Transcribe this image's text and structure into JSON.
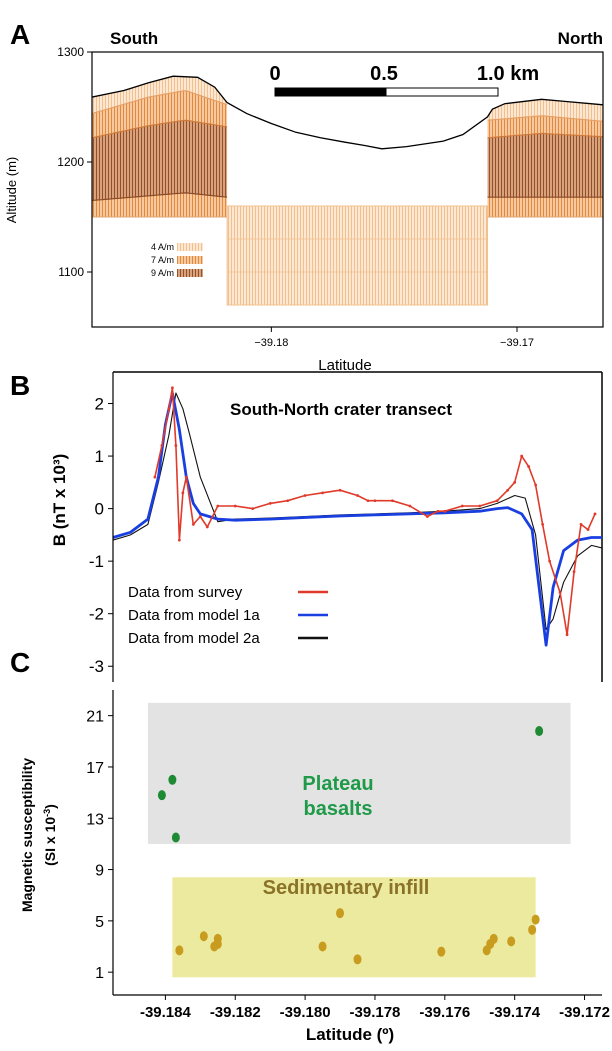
{
  "chart_data": [
    {
      "panel_label": "A",
      "type": "area",
      "xlabel": "Latitude",
      "ylabel": "Altitude (m)",
      "ylim": [
        1050,
        1300
      ],
      "xlim": [
        -39.1873,
        -39.1665
      ],
      "xticks": [
        -39.18,
        -39.17
      ],
      "xtick_labels": [
        "−39.18",
        "−39.17"
      ],
      "yticks": [
        1100,
        1200,
        1300
      ],
      "corner_labels": {
        "left": "South",
        "right": "North"
      },
      "scale_bar": {
        "labels": [
          "0",
          "0.5",
          "1.0 km"
        ]
      },
      "legend": [
        {
          "label": "4 A/m",
          "color": "#f6d2ab"
        },
        {
          "label": "7 A/m",
          "color": "#ec9a58"
        },
        {
          "label": "9 A/m",
          "color": "#a6582f"
        }
      ],
      "surface_profile": {
        "x": [
          -39.1873,
          -39.186,
          -39.185,
          -39.184,
          -39.183,
          -39.1823,
          -39.1818,
          -39.181,
          -39.18,
          -39.179,
          -39.178,
          -39.177,
          -39.1762,
          -39.1755,
          -39.1745,
          -39.173,
          -39.1722,
          -39.1712,
          -39.171,
          -39.1705,
          -39.169,
          -39.168,
          -39.167,
          -39.1665
        ],
        "y": [
          1259,
          1265,
          1272,
          1278,
          1277,
          1268,
          1254,
          1244,
          1235,
          1227,
          1222,
          1218,
          1215,
          1212,
          1214,
          1219,
          1225,
          1241,
          1248,
          1253,
          1257,
          1255,
          1253,
          1252
        ]
      },
      "layer_boundaries": [
        {
          "magnetization": "4 A/m",
          "x": [
            -39.1873,
            -39.185,
            -39.1835,
            -39.1818,
            -39.1712,
            -39.169,
            -39.1665
          ],
          "y": [
            1244,
            1259,
            1265,
            1252,
            1238,
            1242,
            1237
          ]
        },
        {
          "magnetization": "7 A/m",
          "x": [
            -39.1873,
            -39.185,
            -39.1835,
            -39.1818,
            -39.1712,
            -39.169,
            -39.1665
          ],
          "y": [
            1222,
            1233,
            1238,
            1232,
            1222,
            1226,
            1223
          ]
        },
        {
          "magnetization": "9 A/m",
          "x": [
            -39.1873,
            -39.1835,
            -39.1818,
            -39.1712,
            -39.1665
          ],
          "y": [
            1165,
            1172,
            1168,
            1168,
            1168
          ]
        }
      ],
      "blocks": [
        {
          "name": "south-block",
          "x": [
            -39.1873,
            -39.1818
          ],
          "y_bottom": 1150
        },
        {
          "name": "north-block",
          "x": [
            -39.1712,
            -39.1665
          ],
          "y_bottom": 1150
        },
        {
          "name": "crater-infill",
          "x": [
            -39.1818,
            -39.1712
          ],
          "y": [
            1070,
            1160
          ],
          "magnetization": "4 A/m"
        }
      ]
    },
    {
      "panel_label": "B",
      "type": "line",
      "title": "South-North crater transect",
      "ylabel": "B (nT x 10³)",
      "ylim": [
        -3.3,
        2.6
      ],
      "xlim": [
        -39.1855,
        -39.1715
      ],
      "yticks": [
        2,
        1,
        0,
        -1,
        -2,
        -3
      ],
      "legend_placement": "lower-left",
      "series": [
        {
          "name": "Data from survey",
          "color": "#e03a2a",
          "x": [
            -39.1843,
            -39.1841,
            -39.1839,
            -39.1838,
            -39.1837,
            -39.1836,
            -39.1835,
            -39.1834,
            -39.1832,
            -39.183,
            -39.1828,
            -39.1825,
            -39.182,
            -39.1815,
            -39.181,
            -39.1805,
            -39.18,
            -39.1795,
            -39.179,
            -39.1785,
            -39.1782,
            -39.178,
            -39.1775,
            -39.177,
            -39.1765,
            -39.1762,
            -39.176,
            -39.1755,
            -39.175,
            -39.1745,
            -39.1742,
            -39.174,
            -39.1738,
            -39.1736,
            -39.1734,
            -39.1732,
            -39.173,
            -39.1727,
            -39.1725,
            -39.1723,
            -39.1721,
            -39.1719,
            -39.1717
          ],
          "y": [
            0.6,
            1.2,
            1.9,
            2.3,
            1.2,
            -0.6,
            0.3,
            0.6,
            -0.3,
            -0.15,
            -0.35,
            0.05,
            0.05,
            0.0,
            0.1,
            0.15,
            0.25,
            0.3,
            0.35,
            0.25,
            0.15,
            0.15,
            0.15,
            0.05,
            -0.15,
            -0.05,
            -0.05,
            0.05,
            0.05,
            0.15,
            0.35,
            0.5,
            1.0,
            0.8,
            0.45,
            -0.3,
            -1.0,
            -1.6,
            -2.4,
            -1.2,
            -0.3,
            -0.4,
            -0.1
          ]
        },
        {
          "name": "Data from model 1a",
          "color": "#1a3fe0",
          "x": [
            -39.1855,
            -39.185,
            -39.1845,
            -39.1842,
            -39.184,
            -39.1838,
            -39.1836,
            -39.1834,
            -39.1832,
            -39.183,
            -39.1825,
            -39.182,
            -39.181,
            -39.18,
            -39.179,
            -39.178,
            -39.177,
            -39.176,
            -39.175,
            -39.1745,
            -39.1742,
            -39.1738,
            -39.1735,
            -39.1731,
            -39.1729,
            -39.1726,
            -39.1722,
            -39.1718,
            -39.1715
          ],
          "y": [
            -0.55,
            -0.45,
            -0.2,
            0.6,
            1.6,
            2.2,
            1.5,
            0.6,
            0.1,
            -0.1,
            -0.2,
            -0.22,
            -0.2,
            -0.17,
            -0.14,
            -0.12,
            -0.1,
            -0.08,
            -0.05,
            0.0,
            0.02,
            -0.1,
            -0.4,
            -2.6,
            -1.5,
            -0.8,
            -0.6,
            -0.55,
            -0.55
          ]
        },
        {
          "name": "Data from model 2a",
          "color": "#111111",
          "x": [
            -39.1855,
            -39.185,
            -39.1845,
            -39.1842,
            -39.1839,
            -39.1837,
            -39.1835,
            -39.1833,
            -39.183,
            -39.1825,
            -39.182,
            -39.181,
            -39.18,
            -39.179,
            -39.178,
            -39.177,
            -39.176,
            -39.175,
            -39.1745,
            -39.174,
            -39.1737,
            -39.1734,
            -39.1731,
            -39.1729,
            -39.1726,
            -39.1722,
            -39.1718,
            -39.1715
          ],
          "y": [
            -0.6,
            -0.5,
            -0.3,
            0.5,
            1.4,
            2.2,
            1.9,
            1.4,
            0.6,
            -0.25,
            -0.2,
            -0.18,
            -0.15,
            -0.12,
            -0.1,
            -0.08,
            -0.05,
            0.0,
            0.1,
            0.25,
            0.2,
            -0.5,
            -2.3,
            -2.1,
            -1.4,
            -0.9,
            -0.7,
            -0.75
          ]
        }
      ]
    },
    {
      "panel_label": "C",
      "type": "scatter",
      "xlabel": "Latitude (º)",
      "ylabel_line1": "Magnetic susceptibility",
      "ylabel_line2": "(SI x 10",
      "ylabel_sup": "-3",
      "ylabel_close": ")",
      "xlim": [
        -39.1855,
        -39.1715
      ],
      "ylim": [
        0,
        23
      ],
      "xticks": [
        -39.184,
        -39.182,
        -39.18,
        -39.178,
        -39.176,
        -39.174,
        -39.172
      ],
      "xtick_labels": [
        "-39.184",
        "-39.182",
        "-39.180",
        "-39.178",
        "-39.176",
        "-39.174",
        "-39.172"
      ],
      "yticks": [
        1,
        5,
        9,
        13,
        17,
        21
      ],
      "groups": [
        {
          "name": "Plateau basalts",
          "label_line1": "Plateau",
          "label_line2": "basalts",
          "color": "#1e8a34",
          "box_color": "#e3e3e3",
          "label_color": "#1e9a48",
          "box": {
            "x": [
              -39.1845,
              -39.1724
            ],
            "y": [
              11,
              22
            ]
          },
          "points": [
            {
              "x": -39.1841,
              "y": 14.8
            },
            {
              "x": -39.1838,
              "y": 16.0
            },
            {
              "x": -39.1837,
              "y": 11.5
            },
            {
              "x": -39.1733,
              "y": 19.8
            }
          ]
        },
        {
          "name": "Sedimentary infill",
          "label": "Sedimentary infill",
          "color": "#c89c1e",
          "box_color": "#ecea9e",
          "label_color": "#8a7328",
          "box": {
            "x": [
              -39.1838,
              -39.1734
            ],
            "y": [
              0.6,
              8.4
            ]
          },
          "points": [
            {
              "x": -39.1836,
              "y": 2.7
            },
            {
              "x": -39.1829,
              "y": 3.8
            },
            {
              "x": -39.1826,
              "y": 3.0
            },
            {
              "x": -39.1825,
              "y": 3.6
            },
            {
              "x": -39.1825,
              "y": 3.2
            },
            {
              "x": -39.1795,
              "y": 3.0
            },
            {
              "x": -39.179,
              "y": 5.6
            },
            {
              "x": -39.1785,
              "y": 2.0
            },
            {
              "x": -39.1761,
              "y": 2.6
            },
            {
              "x": -39.1748,
              "y": 2.7
            },
            {
              "x": -39.1747,
              "y": 3.2
            },
            {
              "x": -39.1746,
              "y": 3.6
            },
            {
              "x": -39.1741,
              "y": 3.4
            },
            {
              "x": -39.1735,
              "y": 4.3
            },
            {
              "x": -39.1734,
              "y": 5.1
            }
          ]
        }
      ]
    }
  ]
}
